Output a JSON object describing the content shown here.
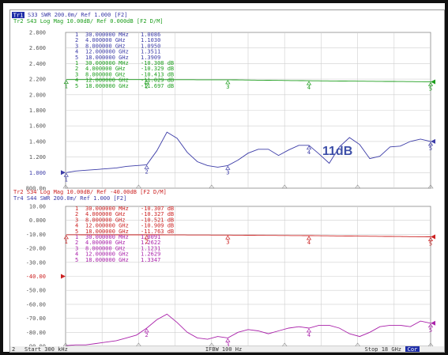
{
  "panels": [
    {
      "header1": "S33 SWR 200.0m/ Ref 1.000 [F2]",
      "header2": "Tr2 S43 Log Mag 10.00dB/ Ref 0.000dB [F2 D/M]",
      "tr1_tag": "Tr1",
      "yaxis_labels": [
        "2.800",
        "2.600",
        "2.400",
        "2.200",
        "2.000",
        "1.800",
        "1.600",
        "1.400",
        "1.200",
        "1.000",
        "800.0m"
      ],
      "ref_label": "1.000",
      "markers_top": [
        {
          "n": "1",
          "f": "30.000000 MHz",
          "v": "1.0086"
        },
        {
          "n": "2",
          "f": "4.000000 GHz",
          "v": "1.1030"
        },
        {
          "n": "3",
          "f": "8.000000 GHz",
          "v": "1.0950"
        },
        {
          "n": "4",
          "f": "12.000000 GHz",
          "v": "1.3511"
        },
        {
          "n": "5",
          "f": "18.000000 GHz",
          "v": "1.3909"
        }
      ],
      "markers_bottom": [
        {
          "n": "1",
          "f": "30.000000 MHz",
          "v": "-10.308 dB"
        },
        {
          "n": "2",
          "f": "4.000000 GHz",
          "v": "-10.329 dB"
        },
        {
          "n": "3",
          "f": "8.000000 GHz",
          "v": "-10.413 dB"
        },
        {
          "n": "4",
          "f": "12.000000 GHz",
          "v": "-11.029 dB"
        },
        {
          "n": "5",
          "f": "18.000000 GHz",
          "v": "-11.697 dB"
        }
      ]
    },
    {
      "header1": "Tr2 S34 Log Mag 10.00dB/ Ref -40.00dB [F2 D/M]",
      "header2": "Tr4 S44 SWR 200.0m/ Ref 1.000 [F2]",
      "yaxis_labels": [
        "10.00",
        "0.000",
        "-10.00",
        "-20.00",
        "-30.00",
        "-40.00",
        "-50.00",
        "-60.00",
        "-70.00",
        "-80.00",
        "-90.00"
      ],
      "ref_label": "-40.00",
      "markers_top": [
        {
          "n": "1",
          "f": "30.000000 MHz",
          "v": "-10.307 dB"
        },
        {
          "n": "2",
          "f": "4.000000 GHz",
          "v": "-10.327 dB"
        },
        {
          "n": "3",
          "f": "8.000000 GHz",
          "v": "-10.521 dB"
        },
        {
          "n": "4",
          "f": "12.000000 GHz",
          "v": "-10.909 dB"
        },
        {
          "n": "5",
          "f": "18.000000 GHz",
          "v": "-11.763 dB"
        }
      ],
      "markers_bottom": [
        {
          "n": "1",
          "f": "30.000000 MHz",
          "v": "1.0091"
        },
        {
          "n": "2",
          "f": "4.000000 GHz",
          "v": "1.2622"
        },
        {
          "n": "3",
          "f": "8.000000 GHz",
          "v": "1.1231"
        },
        {
          "n": "4",
          "f": "12.000000 GHz",
          "v": "1.2629"
        },
        {
          "n": "5",
          "f": "18.000000 GHz",
          "v": "1.3347"
        }
      ]
    }
  ],
  "annotation": "11dB",
  "footer": {
    "channel": "2",
    "start": "Start 300 kHz",
    "ifbw": "IFBW 100 Hz",
    "stop": "Stop 18 GHz",
    "cor": "Cor"
  },
  "colors": {
    "s33": "#3d3da8",
    "s43": "#1e9e1e",
    "s34": "#cc2222",
    "s44": "#aa22aa",
    "text": "#3a3aa8",
    "grid": "#cfcfcf",
    "annotation": "#3d4fa8"
  },
  "chart_data": [
    {
      "type": "line",
      "title": "",
      "xlabel": "",
      "ylabel": "",
      "xlim": [
        0.0003,
        18
      ],
      "series": [
        {
          "name": "S33",
          "unit": "SWR",
          "ylim": [
            0.8,
            2.8
          ],
          "x": [
            0.03,
            0.5,
            1,
            1.5,
            2,
            2.5,
            3,
            3.5,
            4,
            4.5,
            5,
            5.5,
            6,
            6.5,
            7,
            7.5,
            8,
            8.5,
            9,
            9.5,
            10,
            10.5,
            11,
            11.5,
            12,
            12.5,
            13,
            13.5,
            14,
            14.5,
            15,
            15.5,
            16,
            16.5,
            17,
            17.5,
            18
          ],
          "y": [
            1.0,
            1.02,
            1.03,
            1.04,
            1.05,
            1.06,
            1.08,
            1.09,
            1.1,
            1.28,
            1.52,
            1.44,
            1.26,
            1.14,
            1.09,
            1.07,
            1.09,
            1.16,
            1.25,
            1.3,
            1.3,
            1.22,
            1.29,
            1.35,
            1.35,
            1.24,
            1.12,
            1.33,
            1.45,
            1.36,
            1.18,
            1.21,
            1.33,
            1.34,
            1.4,
            1.43,
            1.4
          ]
        },
        {
          "name": "S43",
          "unit": "dB",
          "ylim": [
            -80,
            20
          ],
          "x": [
            0.03,
            4,
            8,
            12,
            18
          ],
          "y": [
            -10.308,
            -10.329,
            -10.413,
            -11.029,
            -11.697
          ]
        }
      ]
    },
    {
      "type": "line",
      "title": "",
      "xlabel": "",
      "ylabel": "",
      "xlim": [
        0.0003,
        18
      ],
      "series": [
        {
          "name": "S34",
          "unit": "dB",
          "ylim": [
            -90,
            10
          ],
          "x": [
            0.03,
            4,
            8,
            12,
            18
          ],
          "y": [
            -10.307,
            -10.327,
            -10.521,
            -10.909,
            -11.763
          ]
        },
        {
          "name": "S44",
          "unit": "SWR",
          "ylim": [
            1.0,
            3.0
          ],
          "x": [
            0.03,
            0.5,
            1,
            1.5,
            2,
            2.5,
            3,
            3.5,
            4,
            4.5,
            5,
            5.5,
            6,
            6.5,
            7,
            7.5,
            8,
            8.5,
            9,
            9.5,
            10,
            10.5,
            11,
            11.5,
            12,
            12.5,
            13,
            13.5,
            14,
            14.5,
            15,
            15.5,
            16,
            16.5,
            17,
            17.5,
            18
          ],
          "y": [
            1.01,
            1.02,
            1.02,
            1.04,
            1.06,
            1.08,
            1.12,
            1.16,
            1.26,
            1.38,
            1.46,
            1.34,
            1.2,
            1.12,
            1.1,
            1.14,
            1.12,
            1.2,
            1.24,
            1.22,
            1.18,
            1.22,
            1.26,
            1.28,
            1.26,
            1.3,
            1.3,
            1.26,
            1.18,
            1.14,
            1.2,
            1.28,
            1.3,
            1.3,
            1.28,
            1.36,
            1.33
          ]
        }
      ]
    }
  ]
}
